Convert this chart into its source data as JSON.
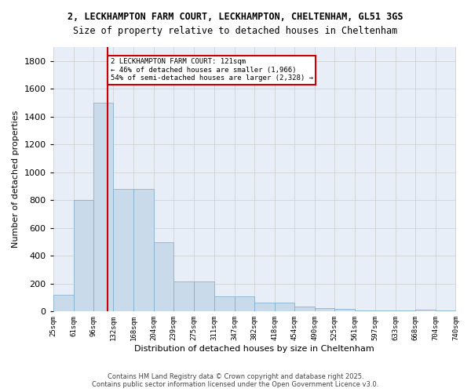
{
  "title_line1": "2, LECKHAMPTON FARM COURT, LECKHAMPTON, CHELTENHAM, GL51 3GS",
  "title_line2": "Size of property relative to detached houses in Cheltenham",
  "xlabel": "Distribution of detached houses by size in Cheltenham",
  "ylabel": "Number of detached properties",
  "bar_edges": [
    25,
    61,
    96,
    132,
    168,
    204,
    239,
    275,
    311,
    347,
    382,
    418,
    454,
    490,
    525,
    561,
    597,
    633,
    668,
    704,
    740
  ],
  "bar_heights": [
    120,
    800,
    1500,
    880,
    880,
    500,
    215,
    215,
    110,
    110,
    65,
    65,
    35,
    25,
    20,
    5,
    5,
    5,
    15,
    5
  ],
  "bar_color": "#c9daea",
  "bar_edgecolor": "#7aaac8",
  "grid_color": "#cccccc",
  "bg_color": "#e8eef8",
  "annotation_text": "2 LECKHAMPTON FARM COURT: 121sqm\n← 46% of detached houses are smaller (1,966)\n54% of semi-detached houses are larger (2,328) →",
  "vline_x": 121,
  "vline_color": "#cc0000",
  "annotation_box_edgecolor": "#cc0000",
  "annotation_box_facecolor": "#ffffff",
  "ylim": [
    0,
    1900
  ],
  "yticks": [
    0,
    200,
    400,
    600,
    800,
    1000,
    1200,
    1400,
    1600,
    1800
  ],
  "tick_labels": [
    "25sqm",
    "61sqm",
    "96sqm",
    "132sqm",
    "168sqm",
    "204sqm",
    "239sqm",
    "275sqm",
    "311sqm",
    "347sqm",
    "382sqm",
    "418sqm",
    "454sqm",
    "490sqm",
    "525sqm",
    "561sqm",
    "597sqm",
    "633sqm",
    "668sqm",
    "704sqm",
    "740sqm"
  ],
  "footer_line1": "Contains HM Land Registry data © Crown copyright and database right 2025.",
  "footer_line2": "Contains public sector information licensed under the Open Government Licence v3.0."
}
